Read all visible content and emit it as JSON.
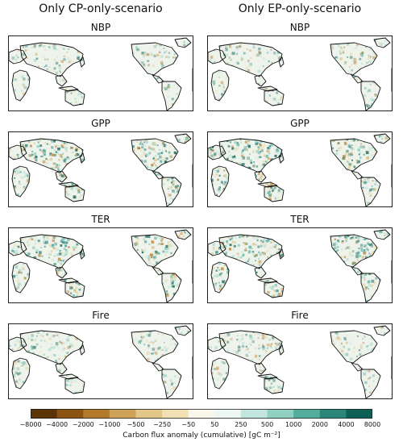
{
  "columns": [
    {
      "title": "Only CP-only-scenario"
    },
    {
      "title": "Only EP-only-scenario"
    }
  ],
  "rows": [
    {
      "label": "NBP",
      "intensity": 0.25
    },
    {
      "label": "GPP",
      "intensity": 0.75
    },
    {
      "label": "TER",
      "intensity": 0.7
    },
    {
      "label": "Fire",
      "intensity": 0.2
    }
  ],
  "colorbar": {
    "ticks": [
      "−8000",
      "−4000",
      "−2000",
      "−1000",
      "−500",
      "−250",
      "−50",
      "50",
      "250",
      "500",
      "1000",
      "2000",
      "4000",
      "8000"
    ],
    "colors": [
      "#5a3404",
      "#8b5410",
      "#b47a2c",
      "#cfa259",
      "#e3c789",
      "#f1e0b4",
      "#fbf6ec",
      "#ecf6f3",
      "#c2e6dd",
      "#8fd0c0",
      "#52ad9d",
      "#2a877a",
      "#0e5f55"
    ],
    "label": "Carbon flux anomaly (cumulative) [gC m⁻²]"
  }
}
